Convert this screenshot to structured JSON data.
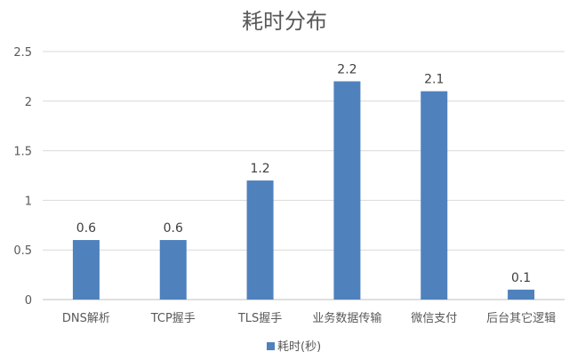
{
  "chart_data": {
    "type": "bar",
    "title": "耗时分布",
    "categories": [
      "DNS解析",
      "TCP握手",
      "TLS握手",
      "业务数据传输",
      "微信支付",
      "后台其它逻辑"
    ],
    "series": [
      {
        "name": "耗时(秒)",
        "values": [
          0.6,
          0.6,
          1.2,
          2.2,
          2.1,
          0.1
        ],
        "color": "#4f81bd"
      }
    ],
    "data_labels": [
      "0.6",
      "0.6",
      "1.2",
      "2.2",
      "2.1",
      "0.1"
    ],
    "y_ticks": [
      "0",
      "0.5",
      "1",
      "1.5",
      "2",
      "2.5"
    ],
    "ylim": [
      0,
      2.5
    ],
    "xlabel": "",
    "ylabel": "",
    "grid": true,
    "legend_position": "bottom"
  }
}
